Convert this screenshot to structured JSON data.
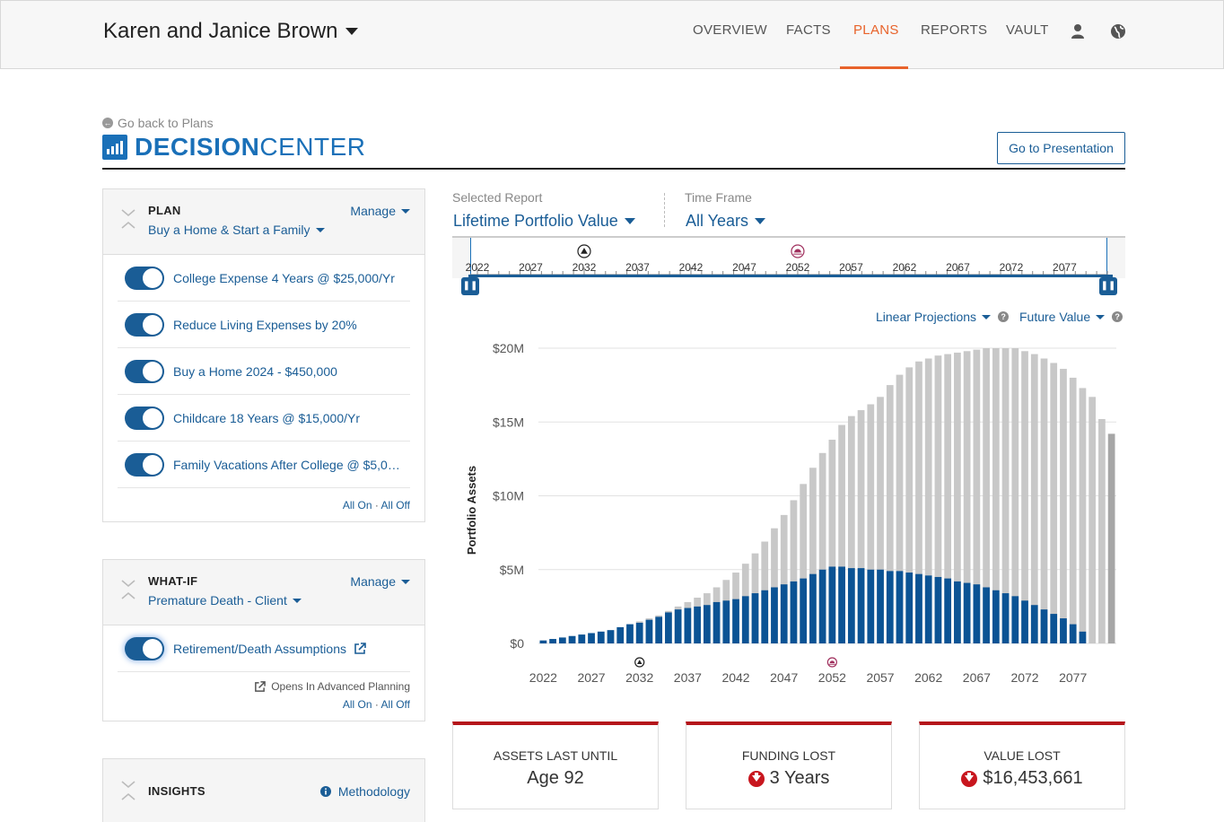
{
  "header": {
    "client_name": "Karen and Janice Brown",
    "nav": [
      {
        "label": "OVERVIEW"
      },
      {
        "label": "FACTS"
      },
      {
        "label": "PLANS",
        "active": true
      },
      {
        "label": "REPORTS"
      },
      {
        "label": "VAULT"
      }
    ],
    "accent_color": "#e8632b"
  },
  "page": {
    "back_link": "Go back to Plans",
    "title_bold": "DECISION",
    "title_light": "CENTER",
    "presentation_button": "Go to Presentation"
  },
  "plan_panel": {
    "label": "PLAN",
    "manage": "Manage",
    "selected_plan": "Buy a Home & Start a Family",
    "items": [
      {
        "label": "College Expense 4 Years @ $25,000/Yr",
        "on": true
      },
      {
        "label": "Reduce Living Expenses by 20%",
        "on": true
      },
      {
        "label": "Buy a Home 2024 - $450,000",
        "on": true
      },
      {
        "label": "Childcare 18 Years @ $15,000/Yr",
        "on": true
      },
      {
        "label": "Family Vacations After College @ $5,0…",
        "on": true
      }
    ],
    "all_on": "All On",
    "all_off": "All Off"
  },
  "whatif_panel": {
    "label": "WHAT-IF",
    "manage": "Manage",
    "selected": "Premature Death - Client",
    "items": [
      {
        "label": "Retirement/Death Assumptions",
        "on": true
      }
    ],
    "advanced_note": "Opens In Advanced Planning",
    "all_on": "All On",
    "all_off": "All Off"
  },
  "insights_panel": {
    "label": "INSIGHTS",
    "methodology": "Methodology"
  },
  "report": {
    "selected_report_label": "Selected Report",
    "selected_report": "Lifetime Portfolio Value",
    "time_frame_label": "Time Frame",
    "time_frame": "All Years",
    "projection": "Linear Projections",
    "value_mode": "Future Value"
  },
  "timeline": {
    "ticks": [
      "2022",
      "2027",
      "2032",
      "2037",
      "2042",
      "2047",
      "2052",
      "2057",
      "2062",
      "2067",
      "2072",
      "2077"
    ]
  },
  "chart_data": {
    "type": "bar",
    "ylabel": "Portfolio Assets",
    "ylim": [
      0,
      20
    ],
    "y_ticks": [
      "$0",
      "$5M",
      "$10M",
      "$15M",
      "$20M"
    ],
    "x_ticks": [
      "2022",
      "2027",
      "2032",
      "2037",
      "2042",
      "2047",
      "2052",
      "2057",
      "2062",
      "2067",
      "2072",
      "2077"
    ],
    "x_start": 2022,
    "x_end": 2081,
    "series": [
      {
        "values": [
          0.2,
          0.3,
          0.4,
          0.5,
          0.6,
          0.7,
          0.8,
          0.9,
          1.1,
          1.3,
          1.4,
          1.6,
          1.8,
          2.1,
          2.3,
          2.4,
          2.5,
          2.6,
          2.8,
          2.9,
          3.0,
          3.2,
          3.4,
          3.6,
          3.8,
          4.0,
          4.2,
          4.4,
          4.7,
          5.0,
          5.2,
          5.2,
          5.1,
          5.1,
          5.0,
          5.0,
          4.9,
          4.9,
          4.8,
          4.7,
          4.6,
          4.5,
          4.4,
          4.2,
          4.1,
          4.0,
          3.8,
          3.6,
          3.4,
          3.2,
          2.9,
          2.6,
          2.3,
          2.0,
          1.7,
          1.3,
          0.8,
          0.0,
          0.0,
          0.0
        ],
        "color": "#0b5394"
      },
      {
        "values": [
          0.2,
          0.3,
          0.4,
          0.5,
          0.6,
          0.7,
          0.8,
          0.9,
          1.1,
          1.3,
          1.5,
          1.7,
          1.9,
          2.2,
          2.5,
          2.8,
          3.1,
          3.4,
          3.8,
          4.3,
          4.8,
          5.4,
          6.1,
          6.9,
          7.8,
          8.7,
          9.7,
          10.8,
          11.9,
          12.9,
          13.8,
          14.8,
          15.4,
          15.8,
          16.2,
          16.7,
          17.5,
          18.2,
          18.7,
          19.1,
          19.3,
          19.5,
          19.6,
          19.7,
          19.8,
          19.9,
          20.0,
          20.0,
          20.0,
          20.0,
          19.8,
          19.6,
          19.3,
          19.0,
          18.6,
          18.0,
          17.3,
          16.7,
          15.2,
          14.2
        ],
        "color": "#c8c8c8"
      }
    ],
    "markers": [
      {
        "year": 2032,
        "icon": "triangle-marker-icon"
      },
      {
        "year": 2052,
        "icon": "sunset-marker-icon"
      }
    ]
  },
  "stats": [
    {
      "label": "ASSETS LAST UNTIL",
      "value": "Age 92",
      "down": false
    },
    {
      "label": "FUNDING LOST",
      "value": "3 Years",
      "down": true
    },
    {
      "label": "VALUE LOST",
      "value": "$16,453,661",
      "down": true
    }
  ]
}
